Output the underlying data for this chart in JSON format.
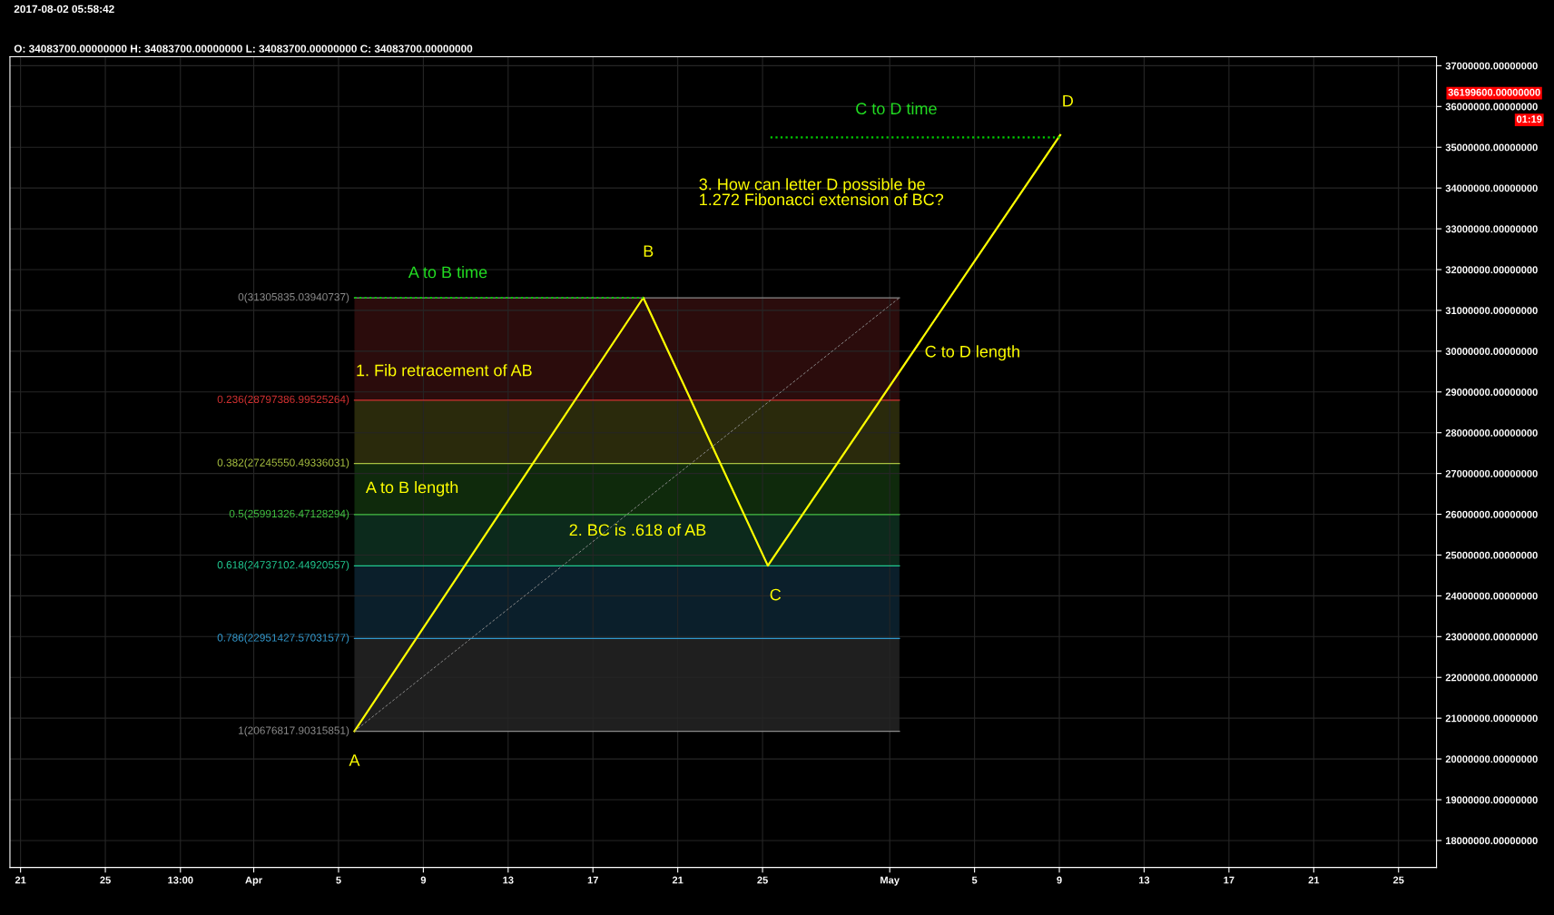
{
  "chart_data": {
    "type": "line",
    "series": [
      {
        "color": "#ffff00",
        "line_style": "solid",
        "x": [
          "2017-04-05T18:00",
          "2017-04-19T09:00",
          "2017-04-25T06:00",
          "2017-05-09T01:00"
        ],
        "values": [
          20680000,
          31310000,
          24740000,
          35300000
        ]
      },
      {
        "color": "#8a8a8a",
        "line_style": "dashed",
        "x": [
          "2017-04-05T18:00",
          "2017-05-01T11:00"
        ],
        "values": [
          20680000,
          31310000
        ]
      },
      {
        "color": "#00cc00",
        "line_style": "dotted",
        "x": [
          "2017-04-05T18:00",
          "2017-04-19T09:00"
        ],
        "values": [
          31310000,
          31310000
        ]
      },
      {
        "color": "#00cc00",
        "line_style": "dotted",
        "x": [
          "2017-04-25T09:00",
          "2017-05-09T01:00"
        ],
        "values": [
          35240000,
          35240000
        ]
      }
    ],
    "bands": [
      {
        "axis": "y",
        "from": 28797386.99525264,
        "to": 31305835.03940737,
        "color": "#2b0c0c"
      },
      {
        "axis": "y",
        "from": 27245550.49336031,
        "to": 28797386.99525264,
        "color": "#2a2a0c"
      },
      {
        "axis": "y",
        "from": 25991326.47128294,
        "to": 27245550.49336031,
        "color": "#0f2a0c"
      },
      {
        "axis": "y",
        "from": 24737102.44920557,
        "to": 25991326.47128294,
        "color": "#0c2a1c"
      },
      {
        "axis": "y",
        "from": 22951427.57031577,
        "to": 24737102.44920557,
        "color": "#0b1f2b"
      },
      {
        "axis": "y",
        "from": 20676817.90315851,
        "to": 22951427.57031577,
        "color": "#1f1f1f"
      }
    ],
    "ref_lines": [
      {
        "axis": "y",
        "value": 31305835.03940737,
        "label": "0(31305835.03940737)",
        "color": "#8a8a8a"
      },
      {
        "axis": "y",
        "value": 28797386.99525264,
        "label": "0.236(28797386.99525264)",
        "color": "#d03030"
      },
      {
        "axis": "y",
        "value": 27245550.49336031,
        "label": "0.382(27245550.49336031)",
        "color": "#a8c040"
      },
      {
        "axis": "y",
        "value": 25991326.47128294,
        "label": "0.5(25991326.47128294)",
        "color": "#40c040"
      },
      {
        "axis": "y",
        "value": 24737102.44920557,
        "label": "0.618(24737102.44920557)",
        "color": "#20c890"
      },
      {
        "axis": "y",
        "value": 22951427.57031577,
        "label": "0.786(22951427.57031577)",
        "color": "#3398cc"
      },
      {
        "axis": "y",
        "value": 20676817.90315851,
        "label": "1(20676817.90315851)",
        "color": "#8a8a8a"
      }
    ],
    "annotations": [
      "2017-08-02 05:58:42",
      "O: 34083700.00000000 H: 34083700.00000000 L: 34083700.00000000 C: 34083700.00000000",
      "A to B time",
      "C to D time",
      "1. Fib retracement of AB",
      "A to B length",
      "2. BC is .618 of AB",
      "3. How can letter D possible be\n1.272 Fibonacci extension of BC?",
      "C to D length",
      "36199600.00000000",
      "01:19",
      {
        "text": "A",
        "x": "2017-04-05T18:00",
        "y": 20676817.90315851
      },
      {
        "text": "B",
        "x": "2017-04-19T09:00",
        "y": 31305835.03940737
      },
      {
        "text": "C",
        "x": "2017-04-25T06:00",
        "y": 24737102.44920557
      },
      {
        "text": "D",
        "x": "2017-05-09T01:00",
        "y": 35300000
      }
    ],
    "xlim": [
      "2017-03-20T12:00",
      "2017-05-26T19:00"
    ],
    "xticks": [
      {
        "value": "2017-03-21",
        "label": "21"
      },
      {
        "value": "2017-03-25",
        "label": "25"
      },
      {
        "value": "2017-03-28T13:00",
        "label": "13:00"
      },
      {
        "value": "2017-04-01",
        "label": "Apr"
      },
      {
        "value": "2017-04-05",
        "label": "5"
      },
      {
        "value": "2017-04-09",
        "label": "9"
      },
      {
        "value": "2017-04-13",
        "label": "13"
      },
      {
        "value": "2017-04-17",
        "label": "17"
      },
      {
        "value": "2017-04-21",
        "label": "21"
      },
      {
        "value": "2017-04-25",
        "label": "25"
      },
      {
        "value": "2017-05-01",
        "label": "May"
      },
      {
        "value": "2017-05-05",
        "label": "5"
      },
      {
        "value": "2017-05-09",
        "label": "9"
      },
      {
        "value": "2017-05-13",
        "label": "13"
      },
      {
        "value": "2017-05-17",
        "label": "17"
      },
      {
        "value": "2017-05-21",
        "label": "21"
      },
      {
        "value": "2017-05-25",
        "label": "25"
      }
    ],
    "ylim": [
      17340000,
      37220000
    ],
    "yticks": [
      {
        "value": 18000000,
        "label": "18000000.00000000"
      },
      {
        "value": 19000000,
        "label": "19000000.00000000"
      },
      {
        "value": 20000000,
        "label": "20000000.00000000"
      },
      {
        "value": 21000000,
        "label": "21000000.00000000"
      },
      {
        "value": 22000000,
        "label": "22000000.00000000"
      },
      {
        "value": 23000000,
        "label": "23000000.00000000"
      },
      {
        "value": 24000000,
        "label": "24000000.00000000"
      },
      {
        "value": 25000000,
        "label": "25000000.00000000"
      },
      {
        "value": 26000000,
        "label": "26000000.00000000"
      },
      {
        "value": 27000000,
        "label": "27000000.00000000"
      },
      {
        "value": 28000000,
        "label": "28000000.00000000"
      },
      {
        "value": 29000000,
        "label": "29000000.00000000"
      },
      {
        "value": 30000000,
        "label": "30000000.00000000"
      },
      {
        "value": 31000000,
        "label": "31000000.00000000"
      },
      {
        "value": 32000000,
        "label": "32000000.00000000"
      },
      {
        "value": 33000000,
        "label": "33000000.00000000"
      },
      {
        "value": 34000000,
        "label": "34000000.00000000"
      },
      {
        "value": 35000000,
        "label": "35000000.00000000"
      },
      {
        "value": 36000000,
        "label": "36000000.00000000"
      },
      {
        "value": 37000000,
        "label": "37000000.00000000"
      }
    ],
    "grid": true
  }
}
